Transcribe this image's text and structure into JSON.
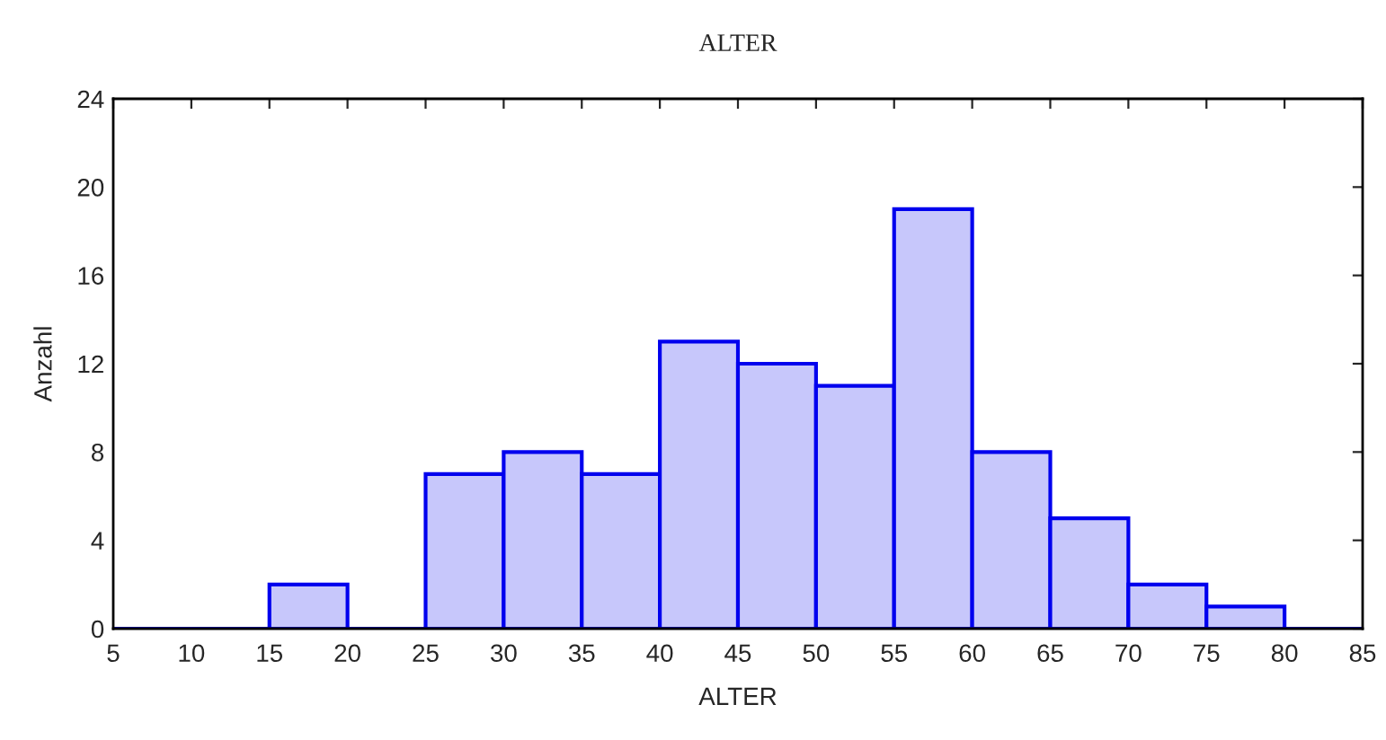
{
  "chart_data": {
    "type": "histogram",
    "title": "ALTER",
    "xlabel": "ALTER",
    "ylabel": "Anzahl",
    "bins": [
      5,
      10,
      15,
      20,
      25,
      30,
      35,
      40,
      45,
      50,
      55,
      60,
      65,
      70,
      75,
      80,
      85
    ],
    "values": [
      0,
      0,
      2,
      0,
      7,
      8,
      7,
      13,
      12,
      11,
      19,
      8,
      5,
      2,
      1,
      0
    ],
    "color": "#0000ee",
    "xlim": [
      5,
      85
    ],
    "xticks": [
      5,
      10,
      15,
      20,
      25,
      30,
      35,
      40,
      45,
      50,
      55,
      60,
      65,
      70,
      75,
      80,
      85
    ],
    "ylim": [
      0,
      24
    ],
    "yticks": [
      0,
      4,
      8,
      12,
      16,
      20,
      24
    ],
    "grid": false,
    "legend": false
  }
}
